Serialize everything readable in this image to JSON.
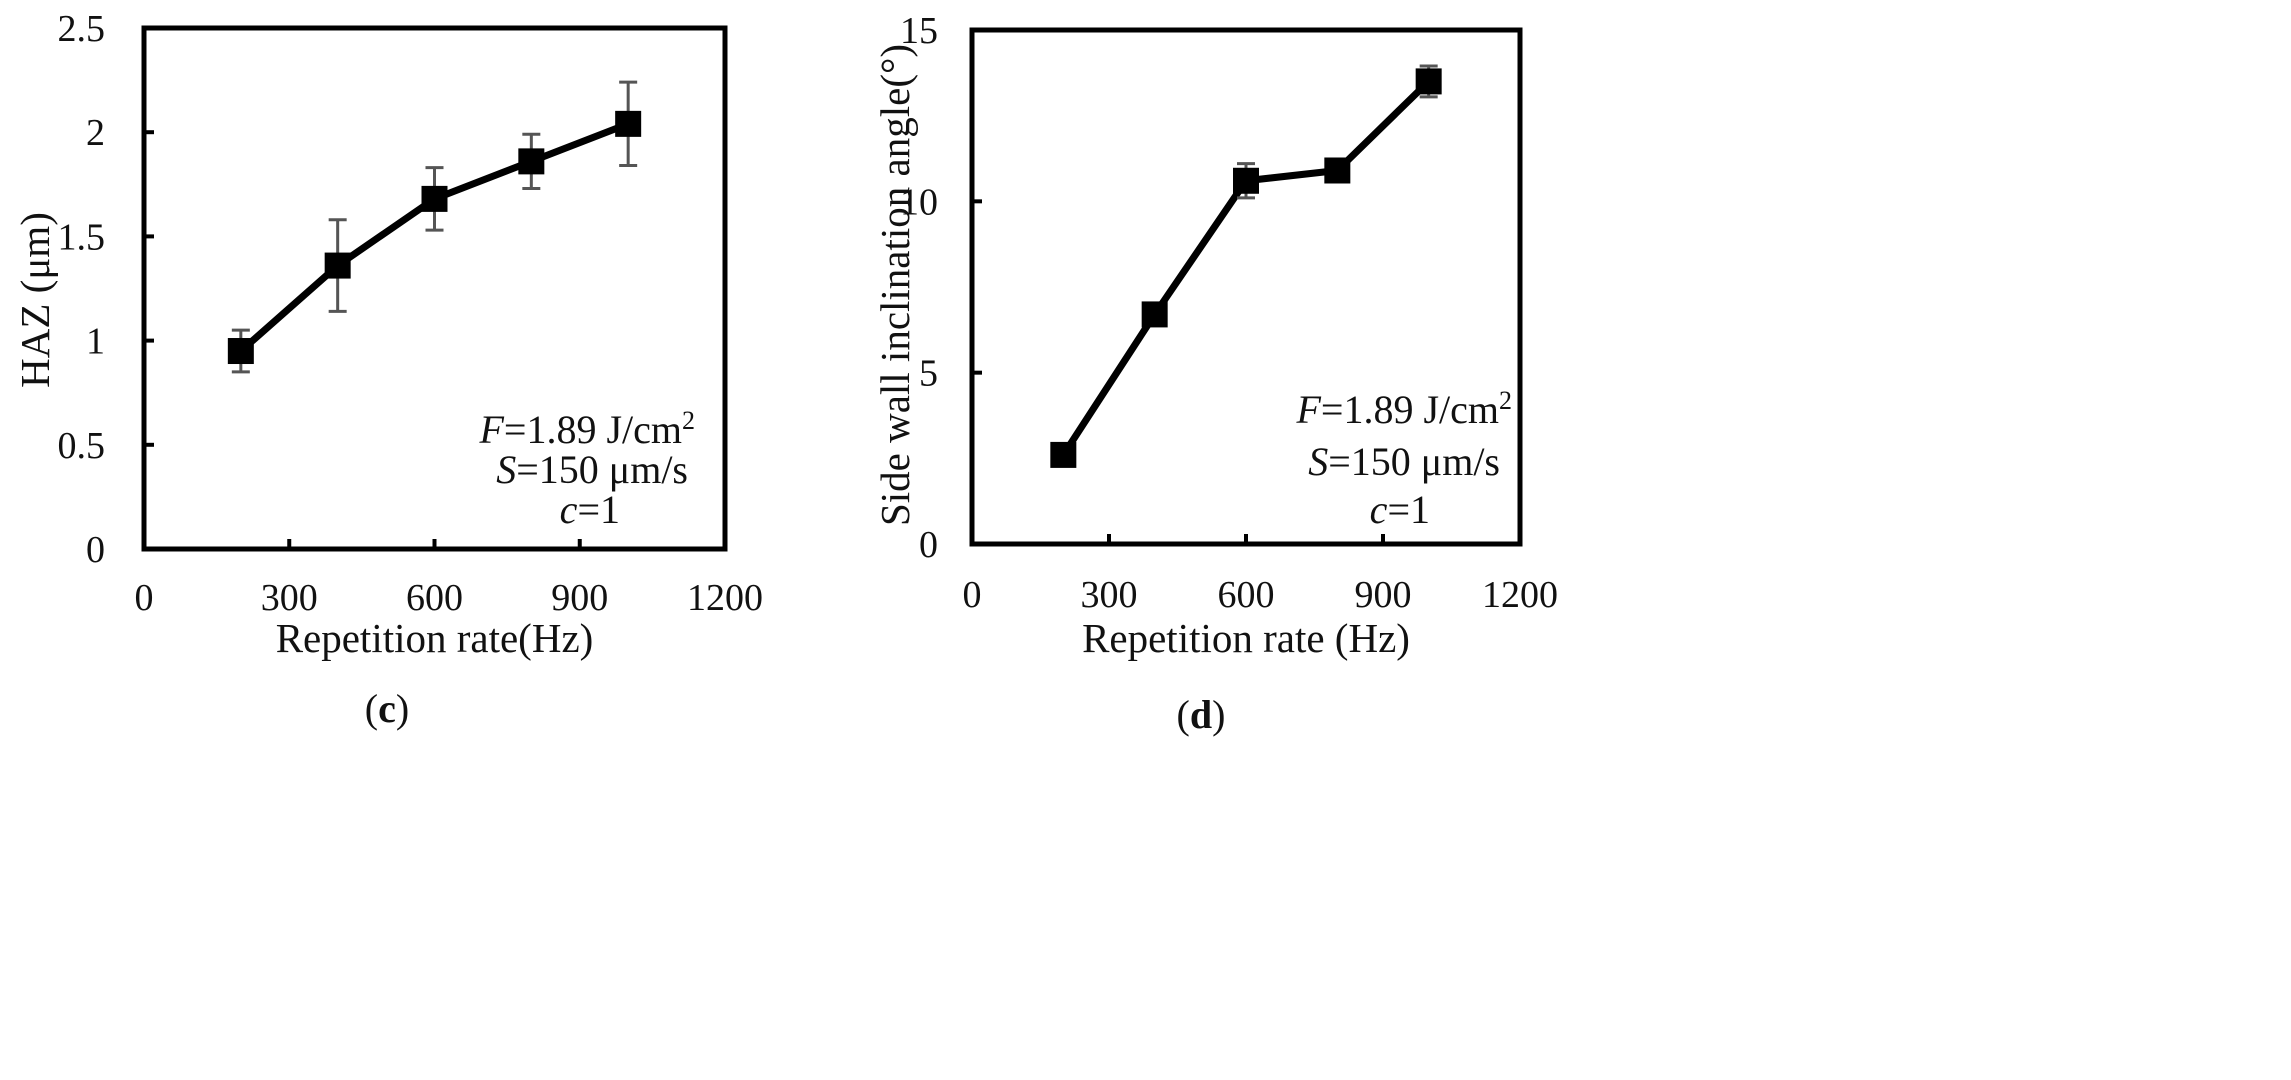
{
  "chart_data": [
    {
      "type": "line",
      "panel_label": "c",
      "title": "",
      "xlabel": "Repetition rate(Hz)",
      "ylabel": "HAZ (μm)",
      "xlim": [
        0,
        1200
      ],
      "ylim": [
        0,
        2.5
      ],
      "xticks": [
        0,
        300,
        600,
        900,
        1200
      ],
      "xtick_labels": [
        "0",
        "300",
        "600",
        "900",
        "1200"
      ],
      "yticks": [
        0,
        0.5,
        1,
        1.5,
        2,
        2.5
      ],
      "ytick_labels": [
        "0",
        "0.5",
        "1",
        "1.5",
        "2",
        "2.5"
      ],
      "grid": false,
      "legend": "none",
      "series": [
        {
          "name": "HAZ",
          "x": [
            200,
            400,
            600,
            800,
            1000
          ],
          "values": [
            0.95,
            1.36,
            1.68,
            1.86,
            2.04
          ],
          "error": [
            0.1,
            0.22,
            0.15,
            0.13,
            0.2
          ],
          "marker": "square"
        }
      ],
      "annotations": [
        {
          "italic": "F",
          "text": "=1.89 J/cm",
          "sup": "2"
        },
        {
          "italic": "S",
          "text": "=150 μm/s",
          "sup": ""
        },
        {
          "italic": "c",
          "text": "=1",
          "sup": ""
        }
      ]
    },
    {
      "type": "line",
      "panel_label": "d",
      "title": "",
      "xlabel": "Repetition rate (Hz)",
      "ylabel": "Side wall inclination angle(°)",
      "xlim": [
        0,
        1200
      ],
      "ylim": [
        0,
        15
      ],
      "xticks": [
        0,
        300,
        600,
        900,
        1200
      ],
      "xtick_labels": [
        "0",
        "300",
        "600",
        "900",
        "1200"
      ],
      "yticks": [
        0,
        5,
        10,
        15
      ],
      "ytick_labels": [
        "0",
        "5",
        "10",
        "15"
      ],
      "grid": false,
      "legend": "none",
      "series": [
        {
          "name": "Side wall inclination angle",
          "x": [
            200,
            400,
            600,
            800,
            1000
          ],
          "values": [
            2.6,
            6.7,
            10.6,
            10.9,
            13.5
          ],
          "error": [
            0.1,
            0.1,
            0.5,
            0.1,
            0.45
          ],
          "marker": "square"
        }
      ],
      "annotations": [
        {
          "italic": "F",
          "text": "=1.89 J/cm",
          "sup": "2"
        },
        {
          "italic": "S",
          "text": "=150 μm/s",
          "sup": ""
        },
        {
          "italic": "c",
          "text": "=1",
          "sup": ""
        }
      ]
    }
  ]
}
